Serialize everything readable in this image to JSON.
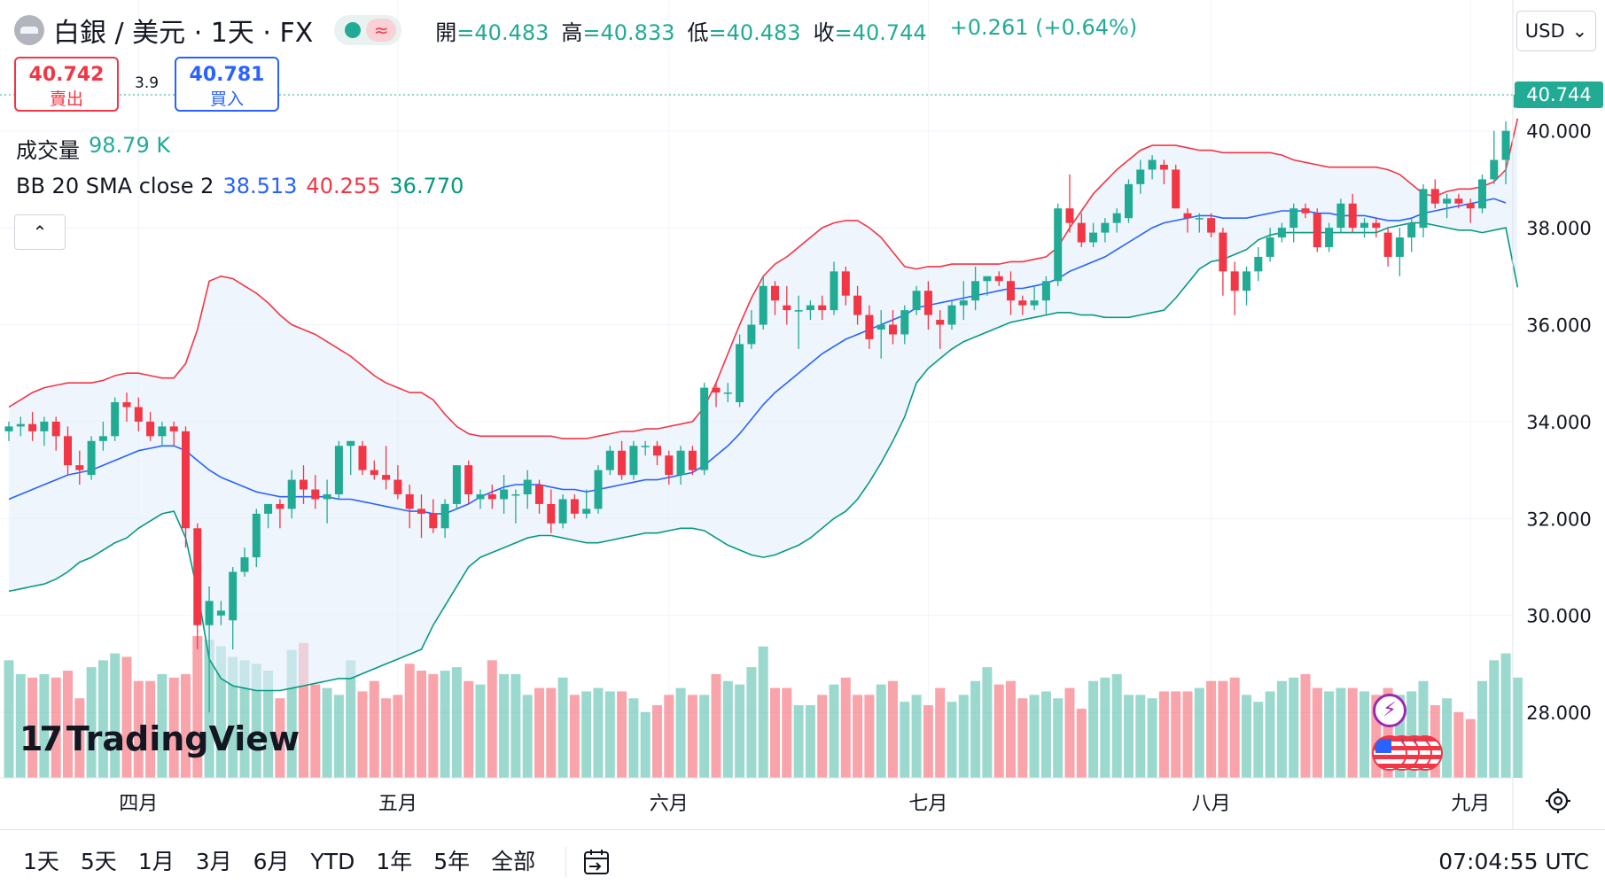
{
  "header": {
    "symbol_title": "白銀 / 美元 · 1天 · FX",
    "status_wave": "≈",
    "ohlc": [
      {
        "key": "開",
        "value": "=40.483"
      },
      {
        "key": "高",
        "value": "=40.833"
      },
      {
        "key": "低",
        "value": "=40.483"
      },
      {
        "key": "收",
        "value": "=40.744"
      }
    ],
    "change": "+0.261 (+0.64%)",
    "currency": "USD",
    "currency_chevron": "⌄"
  },
  "trade": {
    "sell_price": "40.742",
    "sell_label": "賣出",
    "spread": "3.9",
    "buy_price": "40.781",
    "buy_label": "買入"
  },
  "legend": {
    "volume_label": "成交量",
    "volume_value": "98.79 K",
    "bb_label": "BB 20 SMA close 2",
    "bb_basis": "38.513",
    "bb_upper": "40.255",
    "bb_lower": "36.770",
    "collapse_glyph": "⌃"
  },
  "branding": {
    "logo_mark": "17",
    "logo_text": "TradingView"
  },
  "bottom_bar": {
    "ranges": [
      "1天",
      "5天",
      "1月",
      "3月",
      "6月",
      "YTD",
      "1年",
      "5年",
      "全部"
    ],
    "clock": "07:04:55 UTC"
  },
  "icons": {
    "symbol": "silver-coin-icon",
    "lightning": "lightning-icon",
    "flags": "us-flag-icon",
    "settings": "gear-icon",
    "calendar": "calendar-goto-icon"
  },
  "colors": {
    "up": "#22ab94",
    "down": "#f23645",
    "bb_basis": "#2962ff",
    "bb_upper": "#f23645",
    "bb_lower": "#089981",
    "bb_fill": "#e3eefa"
  },
  "chart_data": {
    "type": "candlestick",
    "y_ticks": [
      "40.000",
      "38.000",
      "36.000",
      "34.000",
      "32.000",
      "30.000",
      "28.000"
    ],
    "y_range": [
      26.65,
      42.7
    ],
    "x_labels": [
      {
        "label": "四月",
        "index": 11
      },
      {
        "label": "五月",
        "index": 33
      },
      {
        "label": "六月",
        "index": 56
      },
      {
        "label": "七月",
        "index": 78
      },
      {
        "label": "八月",
        "index": 102
      },
      {
        "label": "九月",
        "index": 124
      }
    ],
    "last_price": "40.744",
    "bars": [
      [
        33.8,
        34.0,
        33.6,
        33.9
      ],
      [
        33.9,
        34.1,
        33.7,
        33.95
      ],
      [
        33.95,
        34.2,
        33.6,
        33.8
      ],
      [
        33.8,
        34.1,
        33.5,
        34.0
      ],
      [
        34.0,
        34.1,
        33.4,
        33.7
      ],
      [
        33.7,
        33.9,
        32.9,
        33.1
      ],
      [
        33.1,
        33.4,
        32.7,
        33.0
      ],
      [
        32.9,
        33.7,
        32.8,
        33.6
      ],
      [
        33.6,
        34.0,
        33.4,
        33.7
      ],
      [
        33.7,
        34.5,
        33.6,
        34.4
      ],
      [
        34.4,
        34.6,
        34.0,
        34.3
      ],
      [
        34.3,
        34.5,
        33.8,
        34.0
      ],
      [
        34.0,
        34.2,
        33.6,
        33.7
      ],
      [
        33.7,
        34.0,
        33.5,
        33.9
      ],
      [
        33.9,
        34.0,
        33.5,
        33.8
      ],
      [
        33.8,
        33.9,
        31.4,
        31.8
      ],
      [
        31.8,
        31.9,
        29.3,
        29.8
      ],
      [
        29.8,
        30.6,
        28.0,
        30.3
      ],
      [
        30.0,
        30.3,
        29.8,
        30.1
      ],
      [
        29.9,
        31.0,
        29.3,
        30.9
      ],
      [
        30.9,
        31.4,
        30.8,
        31.2
      ],
      [
        31.2,
        32.2,
        31.0,
        32.1
      ],
      [
        32.1,
        32.3,
        31.8,
        32.3
      ],
      [
        32.3,
        32.4,
        31.8,
        32.2
      ],
      [
        32.2,
        33.0,
        32.0,
        32.8
      ],
      [
        32.8,
        33.1,
        32.3,
        32.6
      ],
      [
        32.6,
        32.9,
        32.2,
        32.4
      ],
      [
        32.4,
        32.8,
        31.9,
        32.5
      ],
      [
        32.5,
        33.6,
        32.4,
        33.5
      ],
      [
        33.5,
        33.6,
        32.9,
        33.6
      ],
      [
        33.5,
        33.6,
        32.9,
        33.0
      ],
      [
        33.0,
        33.2,
        32.8,
        32.9
      ],
      [
        32.9,
        33.5,
        32.6,
        32.8
      ],
      [
        32.8,
        33.1,
        32.4,
        32.5
      ],
      [
        32.5,
        32.7,
        31.8,
        32.2
      ],
      [
        32.2,
        32.5,
        31.6,
        32.1
      ],
      [
        32.1,
        32.4,
        31.7,
        31.8
      ],
      [
        31.8,
        32.4,
        31.6,
        32.3
      ],
      [
        32.3,
        33.1,
        32.2,
        33.1
      ],
      [
        33.1,
        33.2,
        32.3,
        32.5
      ],
      [
        32.4,
        32.6,
        32.2,
        32.5
      ],
      [
        32.5,
        32.7,
        32.2,
        32.4
      ],
      [
        32.4,
        32.9,
        32.1,
        32.6
      ],
      [
        32.5,
        32.6,
        31.9,
        32.5
      ],
      [
        32.5,
        33.0,
        32.2,
        32.8
      ],
      [
        32.7,
        32.8,
        32.1,
        32.3
      ],
      [
        32.3,
        32.6,
        31.7,
        31.9
      ],
      [
        31.9,
        32.5,
        31.8,
        32.4
      ],
      [
        32.4,
        32.5,
        32.0,
        32.1
      ],
      [
        32.1,
        32.6,
        32.0,
        32.2
      ],
      [
        32.2,
        33.1,
        32.1,
        33.0
      ],
      [
        33.0,
        33.5,
        32.9,
        33.4
      ],
      [
        33.4,
        33.6,
        32.8,
        32.9
      ],
      [
        32.9,
        33.6,
        32.8,
        33.5
      ],
      [
        33.5,
        33.6,
        33.3,
        33.5
      ],
      [
        33.5,
        33.6,
        33.1,
        33.3
      ],
      [
        33.3,
        33.4,
        32.7,
        32.9
      ],
      [
        32.9,
        33.5,
        32.7,
        33.4
      ],
      [
        33.4,
        33.5,
        32.9,
        33.0
      ],
      [
        33.0,
        34.8,
        32.9,
        34.7
      ],
      [
        34.7,
        34.8,
        34.3,
        34.6
      ],
      [
        34.6,
        34.8,
        34.4,
        34.6
      ],
      [
        34.4,
        35.8,
        34.3,
        35.6
      ],
      [
        35.6,
        36.3,
        35.5,
        36.0
      ],
      [
        36.0,
        37.0,
        35.9,
        36.8
      ],
      [
        36.8,
        36.9,
        36.2,
        36.5
      ],
      [
        36.4,
        36.8,
        36.0,
        36.3
      ],
      [
        36.3,
        36.6,
        35.5,
        36.3
      ],
      [
        36.3,
        36.5,
        36.1,
        36.4
      ],
      [
        36.4,
        36.6,
        36.1,
        36.3
      ],
      [
        36.3,
        37.3,
        36.2,
        37.1
      ],
      [
        37.1,
        37.2,
        36.4,
        36.6
      ],
      [
        36.6,
        36.8,
        36.0,
        36.2
      ],
      [
        36.2,
        36.4,
        35.5,
        35.7
      ],
      [
        35.9,
        36.3,
        35.3,
        36.0
      ],
      [
        36.0,
        36.3,
        35.6,
        35.8
      ],
      [
        35.8,
        36.4,
        35.6,
        36.3
      ],
      [
        36.3,
        36.8,
        36.2,
        36.7
      ],
      [
        36.7,
        36.9,
        35.9,
        36.2
      ],
      [
        36.1,
        36.3,
        35.5,
        36.0
      ],
      [
        36.0,
        36.5,
        35.9,
        36.4
      ],
      [
        36.4,
        36.9,
        36.1,
        36.5
      ],
      [
        36.5,
        37.2,
        36.3,
        36.9
      ],
      [
        36.9,
        37.0,
        36.6,
        37.0
      ],
      [
        37.0,
        37.1,
        36.8,
        36.9
      ],
      [
        36.9,
        37.1,
        36.2,
        36.5
      ],
      [
        36.5,
        36.6,
        36.2,
        36.4
      ],
      [
        36.4,
        36.8,
        36.3,
        36.5
      ],
      [
        36.5,
        37.0,
        36.2,
        36.9
      ],
      [
        36.9,
        38.5,
        36.8,
        38.4
      ],
      [
        38.4,
        39.1,
        37.9,
        38.1
      ],
      [
        38.1,
        38.3,
        37.6,
        37.7
      ],
      [
        37.7,
        38.1,
        37.6,
        37.9
      ],
      [
        37.9,
        38.2,
        37.7,
        38.1
      ],
      [
        38.1,
        38.4,
        37.9,
        38.3
      ],
      [
        38.2,
        39.0,
        38.1,
        38.9
      ],
      [
        38.9,
        39.4,
        38.7,
        39.2
      ],
      [
        39.2,
        39.5,
        39.0,
        39.4
      ],
      [
        39.3,
        39.4,
        38.9,
        39.2
      ],
      [
        39.2,
        39.3,
        38.4,
        38.4
      ],
      [
        38.3,
        38.4,
        37.9,
        38.2
      ],
      [
        38.2,
        38.3,
        37.9,
        38.2
      ],
      [
        38.2,
        38.3,
        37.8,
        37.9
      ],
      [
        37.9,
        38.0,
        36.6,
        37.1
      ],
      [
        37.1,
        37.3,
        36.2,
        36.7
      ],
      [
        36.7,
        37.2,
        36.4,
        37.1
      ],
      [
        37.1,
        37.6,
        36.9,
        37.4
      ],
      [
        37.4,
        38.0,
        37.3,
        37.8
      ],
      [
        37.8,
        38.1,
        37.7,
        38.0
      ],
      [
        38.0,
        38.5,
        37.7,
        38.4
      ],
      [
        38.4,
        38.5,
        38.2,
        38.3
      ],
      [
        38.3,
        38.4,
        37.5,
        37.6
      ],
      [
        37.6,
        38.1,
        37.5,
        38.0
      ],
      [
        38.0,
        38.6,
        37.9,
        38.5
      ],
      [
        38.5,
        38.7,
        37.9,
        38.0
      ],
      [
        38.0,
        38.2,
        37.8,
        38.1
      ],
      [
        38.1,
        38.2,
        37.8,
        38.0
      ],
      [
        37.9,
        38.0,
        37.2,
        37.4
      ],
      [
        37.4,
        38.0,
        37.0,
        37.8
      ],
      [
        37.8,
        38.2,
        37.5,
        38.1
      ],
      [
        38.0,
        38.9,
        37.8,
        38.8
      ],
      [
        38.8,
        39.0,
        38.4,
        38.5
      ],
      [
        38.5,
        38.7,
        38.2,
        38.6
      ],
      [
        38.6,
        38.7,
        38.4,
        38.5
      ],
      [
        38.5,
        38.6,
        38.1,
        38.4
      ],
      [
        38.4,
        39.1,
        38.3,
        39.0
      ],
      [
        39.0,
        40.0,
        38.9,
        39.4
      ],
      [
        39.4,
        40.2,
        38.9,
        40.0
      ],
      [
        40.48,
        40.83,
        40.48,
        40.744
      ]
    ],
    "bb_basis": [
      32.4,
      32.5,
      32.6,
      32.7,
      32.8,
      32.9,
      32.95,
      33.0,
      33.1,
      33.2,
      33.3,
      33.4,
      33.45,
      33.5,
      33.5,
      33.4,
      33.2,
      33.0,
      32.85,
      32.75,
      32.65,
      32.55,
      32.5,
      32.45,
      32.45,
      32.45,
      32.45,
      32.45,
      32.4,
      32.4,
      32.35,
      32.3,
      32.25,
      32.2,
      32.15,
      32.15,
      32.1,
      32.1,
      32.2,
      32.3,
      32.45,
      32.55,
      32.65,
      32.7,
      32.7,
      32.7,
      32.65,
      32.6,
      32.6,
      32.55,
      32.6,
      32.65,
      32.7,
      32.75,
      32.8,
      32.8,
      32.85,
      32.9,
      32.95,
      33.1,
      33.3,
      33.5,
      33.75,
      34.05,
      34.35,
      34.6,
      34.8,
      35.0,
      35.2,
      35.4,
      35.55,
      35.7,
      35.8,
      35.9,
      36.0,
      36.1,
      36.2,
      36.35,
      36.4,
      36.45,
      36.5,
      36.55,
      36.6,
      36.65,
      36.7,
      36.75,
      36.75,
      36.8,
      36.85,
      36.95,
      37.1,
      37.2,
      37.3,
      37.4,
      37.55,
      37.7,
      37.85,
      38.0,
      38.1,
      38.15,
      38.2,
      38.25,
      38.25,
      38.2,
      38.2,
      38.2,
      38.25,
      38.3,
      38.35,
      38.35,
      38.35,
      38.3,
      38.3,
      38.25,
      38.25,
      38.25,
      38.2,
      38.15,
      38.15,
      38.2,
      38.3,
      38.35,
      38.4,
      38.45,
      38.5,
      38.55,
      38.6,
      38.513
    ],
    "bb_upper": [
      34.3,
      34.45,
      34.6,
      34.7,
      34.75,
      34.8,
      34.8,
      34.8,
      34.85,
      34.95,
      35.0,
      35.0,
      34.95,
      34.9,
      34.9,
      35.2,
      35.9,
      36.9,
      37.0,
      36.95,
      36.8,
      36.65,
      36.45,
      36.2,
      36.0,
      35.9,
      35.8,
      35.65,
      35.5,
      35.35,
      35.15,
      34.95,
      34.8,
      34.7,
      34.6,
      34.6,
      34.45,
      34.15,
      33.9,
      33.75,
      33.7,
      33.7,
      33.7,
      33.7,
      33.7,
      33.7,
      33.7,
      33.65,
      33.65,
      33.65,
      33.7,
      33.75,
      33.8,
      33.8,
      33.85,
      33.85,
      33.9,
      33.95,
      34.0,
      34.3,
      34.8,
      35.4,
      36.0,
      36.55,
      37.0,
      37.25,
      37.4,
      37.6,
      37.8,
      38.0,
      38.1,
      38.15,
      38.15,
      38.0,
      37.8,
      37.5,
      37.2,
      37.15,
      37.2,
      37.2,
      37.25,
      37.25,
      37.25,
      37.25,
      37.25,
      37.3,
      37.3,
      37.35,
      37.4,
      37.6,
      38.0,
      38.35,
      38.7,
      38.95,
      39.2,
      39.4,
      39.6,
      39.7,
      39.7,
      39.7,
      39.65,
      39.6,
      39.6,
      39.55,
      39.55,
      39.55,
      39.55,
      39.55,
      39.5,
      39.4,
      39.35,
      39.3,
      39.25,
      39.25,
      39.25,
      39.25,
      39.25,
      39.2,
      39.1,
      38.9,
      38.7,
      38.65,
      38.75,
      38.8,
      38.8,
      38.85,
      38.95,
      39.2,
      40.255
    ],
    "bb_lower": [
      30.5,
      30.55,
      30.6,
      30.65,
      30.75,
      30.9,
      31.1,
      31.2,
      31.35,
      31.5,
      31.6,
      31.8,
      31.95,
      32.1,
      32.15,
      31.6,
      30.5,
      29.1,
      28.7,
      28.55,
      28.5,
      28.45,
      28.45,
      28.45,
      28.5,
      28.55,
      28.6,
      28.65,
      28.7,
      28.7,
      28.8,
      28.9,
      29.0,
      29.1,
      29.2,
      29.3,
      29.8,
      30.2,
      30.6,
      31.0,
      31.2,
      31.3,
      31.4,
      31.5,
      31.6,
      31.65,
      31.65,
      31.6,
      31.55,
      31.5,
      31.5,
      31.55,
      31.6,
      31.65,
      31.7,
      31.7,
      31.75,
      31.8,
      31.8,
      31.75,
      31.6,
      31.45,
      31.35,
      31.25,
      31.2,
      31.25,
      31.35,
      31.45,
      31.6,
      31.8,
      32.0,
      32.15,
      32.4,
      32.75,
      33.15,
      33.6,
      34.1,
      34.8,
      35.1,
      35.3,
      35.5,
      35.65,
      35.75,
      35.85,
      35.95,
      36.05,
      36.1,
      36.15,
      36.2,
      36.25,
      36.25,
      36.2,
      36.2,
      36.15,
      36.15,
      36.15,
      36.2,
      36.25,
      36.3,
      36.55,
      36.85,
      37.15,
      37.3,
      37.35,
      37.45,
      37.55,
      37.75,
      37.85,
      37.9,
      37.9,
      37.9,
      37.9,
      37.9,
      37.9,
      37.9,
      37.9,
      37.9,
      38.0,
      38.05,
      38.1,
      38.1,
      38.05,
      38.0,
      37.95,
      37.95,
      37.9,
      37.95,
      38.0,
      36.77
    ],
    "volume": [
      34,
      30,
      29,
      30,
      29,
      31,
      23,
      32,
      34,
      36,
      35,
      28,
      28,
      30,
      29,
      30,
      41,
      40,
      38,
      35,
      34,
      33,
      31,
      23,
      37,
      39,
      27,
      26,
      24,
      34,
      25,
      28,
      23,
      24,
      33,
      31,
      30,
      31,
      32,
      28,
      27,
      34,
      30,
      30,
      24,
      26,
      26,
      29,
      24,
      25,
      26,
      25,
      25,
      23,
      19,
      21,
      24,
      26,
      24,
      24,
      30,
      28,
      27,
      32,
      38,
      26,
      26,
      21,
      21,
      24,
      27,
      29,
      24,
      24,
      27,
      28,
      22,
      24,
      21,
      26,
      22,
      24,
      28,
      32,
      27,
      28,
      23,
      24,
      25,
      23,
      26,
      20,
      28,
      29,
      30,
      24,
      24,
      23,
      25,
      25,
      25,
      26,
      28,
      28,
      29,
      24,
      22,
      25,
      28,
      29,
      30,
      26,
      25,
      26,
      26,
      25,
      24,
      26,
      24,
      25,
      28,
      21,
      23,
      19,
      17,
      28,
      34,
      36,
      29
    ]
  }
}
